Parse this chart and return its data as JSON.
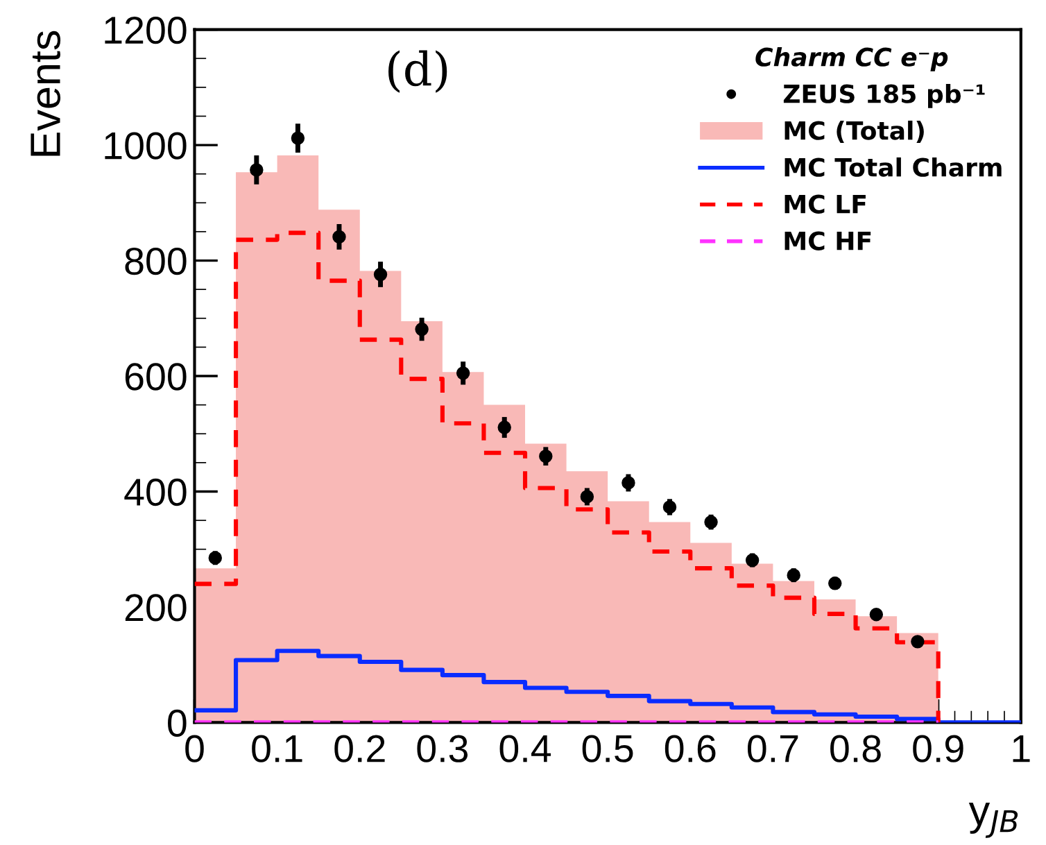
{
  "chart_data": {
    "type": "histogram",
    "annotations": [
      "(d)"
    ],
    "legend_title": "Charm CC e⁻p",
    "xlabel": "y$_{JB}$",
    "ylabel": "Events",
    "bins": [
      0,
      0.05,
      0.1,
      0.15,
      0.2,
      0.25,
      0.3,
      0.35,
      0.4,
      0.45,
      0.5,
      0.55,
      0.6,
      0.65,
      0.7,
      0.75,
      0.8,
      0.85,
      0.9,
      0.95,
      1.0
    ],
    "series": [
      {
        "name": "ZEUS 185 pb⁻¹",
        "type": "scatter",
        "color": "#000000",
        "marker": "circle",
        "x": [
          0.025,
          0.075,
          0.125,
          0.175,
          0.225,
          0.275,
          0.325,
          0.375,
          0.425,
          0.475,
          0.525,
          0.575,
          0.625,
          0.675,
          0.725,
          0.775,
          0.825,
          0.875
        ],
        "values": [
          285,
          957,
          1012,
          841,
          776,
          681,
          605,
          511,
          461,
          391,
          415,
          373,
          347,
          281,
          255,
          241,
          187,
          140
        ],
        "errors": [
          12,
          25,
          25,
          22,
          22,
          20,
          20,
          18,
          16,
          15,
          15,
          14,
          13,
          12,
          12,
          11,
          10,
          9
        ]
      },
      {
        "name": "MC (Total)",
        "color": "#f9b9b7",
        "values": [
          267,
          953,
          982,
          888,
          782,
          695,
          607,
          550,
          483,
          435,
          383,
          347,
          311,
          275,
          245,
          213,
          184,
          155,
          0,
          0
        ]
      },
      {
        "name": "MC Total Charm",
        "type": "step",
        "color": "#0a2cff",
        "line_style": "solid",
        "x": [
          0,
          0.05,
          0.1,
          0.15,
          0.2,
          0.25,
          0.3,
          0.35,
          0.4,
          0.45,
          0.5,
          0.55,
          0.6,
          0.65,
          0.7,
          0.75,
          0.8,
          0.85,
          0.9,
          0.95,
          1.0
        ],
        "values": [
          21,
          108,
          124,
          115,
          105,
          91,
          82,
          70,
          60,
          53,
          46,
          37,
          32,
          26,
          18,
          14,
          10,
          6,
          0,
          0,
          0
        ]
      },
      {
        "name": "MC LF",
        "type": "step",
        "color": "#ff0000",
        "line_style": "dashed",
        "x": [
          0,
          0.05,
          0.1,
          0.15,
          0.2,
          0.25,
          0.3,
          0.35,
          0.4,
          0.45,
          0.5,
          0.55,
          0.6,
          0.65,
          0.7,
          0.75,
          0.8,
          0.85,
          0.9
        ],
        "values": [
          240,
          836,
          848,
          765,
          663,
          595,
          518,
          467,
          406,
          369,
          329,
          296,
          267,
          237,
          216,
          188,
          163,
          139,
          0
        ]
      },
      {
        "name": "MC HF",
        "type": "step",
        "color": "#ff33ff",
        "line_style": "dashed",
        "x": [
          0,
          0.9
        ],
        "values": [
          0,
          0
        ]
      }
    ],
    "xlim": [
      0,
      1
    ],
    "xticks": [
      0,
      0.1,
      0.2,
      0.3,
      0.4,
      0.5,
      0.6,
      0.7,
      0.8,
      0.9,
      1
    ],
    "ylim": [
      0,
      1200
    ],
    "yticks": [
      0,
      200,
      400,
      600,
      800,
      1000,
      1200
    ],
    "grid": false,
    "legend": "top right"
  }
}
